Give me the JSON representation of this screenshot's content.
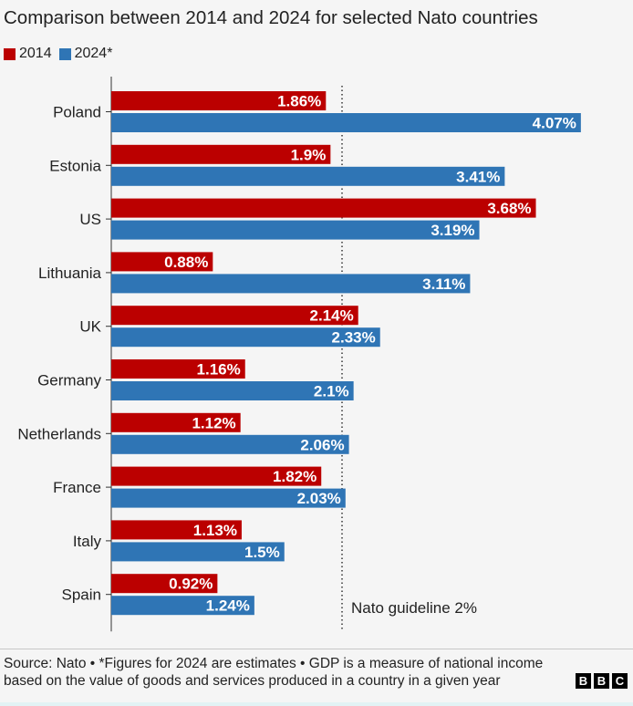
{
  "chart_data": {
    "type": "bar",
    "orientation": "horizontal",
    "title": "Comparison between 2014 and 2024 for selected Nato countries",
    "categories": [
      "Poland",
      "Estonia",
      "US",
      "Lithuania",
      "UK",
      "Germany",
      "Netherlands",
      "France",
      "Italy",
      "Spain"
    ],
    "series": [
      {
        "name": "2014",
        "color": "#bb0000",
        "values": [
          1.86,
          1.9,
          3.68,
          0.88,
          2.14,
          1.16,
          1.12,
          1.82,
          1.13,
          0.92
        ],
        "labels": [
          "1.86%",
          "1.9%",
          "3.68%",
          "0.88%",
          "2.14%",
          "1.16%",
          "1.12%",
          "1.82%",
          "1.13%",
          "0.92%"
        ]
      },
      {
        "name": "2024*",
        "color": "#2f75b5",
        "values": [
          4.07,
          3.41,
          3.19,
          3.11,
          2.33,
          2.1,
          2.06,
          2.03,
          1.5,
          1.24
        ],
        "labels": [
          "4.07%",
          "3.41%",
          "3.19%",
          "3.11%",
          "2.33%",
          "2.1%",
          "2.06%",
          "2.03%",
          "1.5%",
          "1.24%"
        ]
      }
    ],
    "reference_line": {
      "value": 2,
      "label": "Nato guideline 2%",
      "style": "dotted"
    },
    "xlim": [
      0,
      4.2
    ],
    "grid": false,
    "legend_placement": "top-left"
  },
  "source_text": "Source: Nato • *Figures for 2024 are estimates • GDP is a measure of national income based on the value of goods and services produced in a country in a given year",
  "logo": {
    "letters": [
      "B",
      "B",
      "C"
    ]
  }
}
